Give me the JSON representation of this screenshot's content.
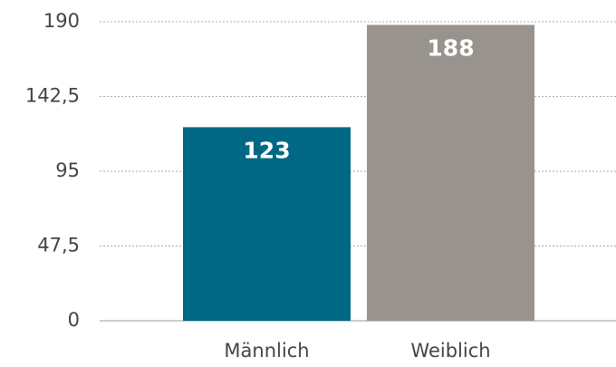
{
  "chart_data": {
    "type": "bar",
    "categories": [
      "Männlich",
      "Weiblich"
    ],
    "values": [
      123,
      188
    ],
    "colors": [
      "#006885",
      "#98938c"
    ],
    "ylim": [
      0,
      190
    ],
    "yticks": [
      0,
      {
        "value": 47.5,
        "label": "47,5"
      },
      95,
      {
        "value": 142.5,
        "label": "142,5"
      },
      190
    ],
    "grid": true
  }
}
